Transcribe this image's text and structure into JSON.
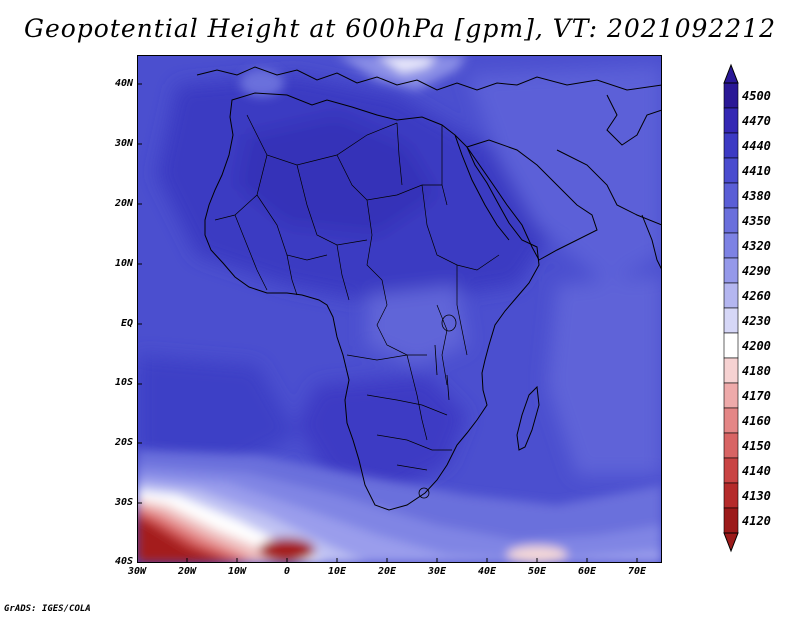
{
  "title": "Geopotential Height at 600hPa [gpm], VT: 2021092212",
  "credit": "GrADS: IGES/COLA",
  "lat_labels": [
    "40N",
    "30N",
    "20N",
    "10N",
    "EQ",
    "10S",
    "20S",
    "30S",
    "40S"
  ],
  "lon_labels": [
    "30W",
    "20W",
    "10W",
    "0",
    "10E",
    "20E",
    "30E",
    "40E",
    "50E",
    "60E",
    "70E"
  ],
  "colorbar": {
    "levels": [
      "4500",
      "4470",
      "4440",
      "4410",
      "4380",
      "4350",
      "4320",
      "4290",
      "4260",
      "4230",
      "4200",
      "4180",
      "4170",
      "4160",
      "4150",
      "4140",
      "4130",
      "4120"
    ],
    "colors": [
      "#2a1896",
      "#3428b4",
      "#3c3ac4",
      "#4a4ccf",
      "#5a5ed6",
      "#6a6fdc",
      "#7d82e4",
      "#9599ea",
      "#b4b6f0",
      "#d6d7f7",
      "#ffffff",
      "#f6d2d2",
      "#eeaaaa",
      "#e48686",
      "#d86464",
      "#c94444",
      "#b52b2b",
      "#9c1a1a"
    ]
  }
}
